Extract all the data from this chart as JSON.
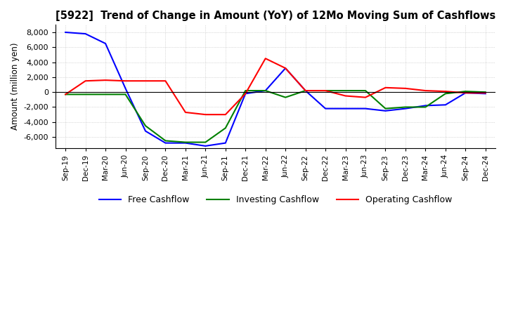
{
  "title": "[5922]  Trend of Change in Amount (YoY) of 12Mo Moving Sum of Cashflows",
  "ylabel": "Amount (million yen)",
  "background_color": "#ffffff",
  "grid_color": "#bbbbbb",
  "dates": [
    "Sep-19",
    "Dec-19",
    "Mar-20",
    "Jun-20",
    "Sep-20",
    "Dec-20",
    "Mar-21",
    "Jun-21",
    "Sep-21",
    "Dec-21",
    "Mar-22",
    "Jun-22",
    "Sep-22",
    "Dec-22",
    "Mar-23",
    "Jun-23",
    "Sep-23",
    "Dec-23",
    "Mar-24",
    "Jun-24",
    "Sep-24",
    "Dec-24"
  ],
  "operating_cashflow": [
    -300,
    1500,
    1600,
    1500,
    1500,
    1500,
    -2700,
    -3000,
    -3000,
    -200,
    4500,
    3200,
    200,
    200,
    -500,
    -700,
    600,
    500,
    200,
    100,
    -100,
    -100
  ],
  "investing_cashflow": [
    -300,
    -300,
    -300,
    -300,
    -4500,
    -6500,
    -6700,
    -6700,
    -4800,
    200,
    200,
    -700,
    200,
    200,
    200,
    200,
    -2200,
    -2000,
    -2000,
    -200,
    100,
    0
  ],
  "free_cashflow": [
    8000,
    7800,
    6500,
    500,
    -5200,
    -6800,
    -6800,
    -7200,
    -6800,
    -200,
    200,
    3200,
    200,
    -2200,
    -2200,
    -2200,
    -2500,
    -2200,
    -1800,
    -1700,
    -100,
    -200
  ],
  "ylim": [
    -7500,
    9000
  ],
  "yticks": [
    -6000,
    -4000,
    -2000,
    0,
    2000,
    4000,
    6000,
    8000
  ],
  "operating_color": "#ff0000",
  "investing_color": "#008000",
  "free_color": "#0000ff",
  "line_width": 1.5
}
